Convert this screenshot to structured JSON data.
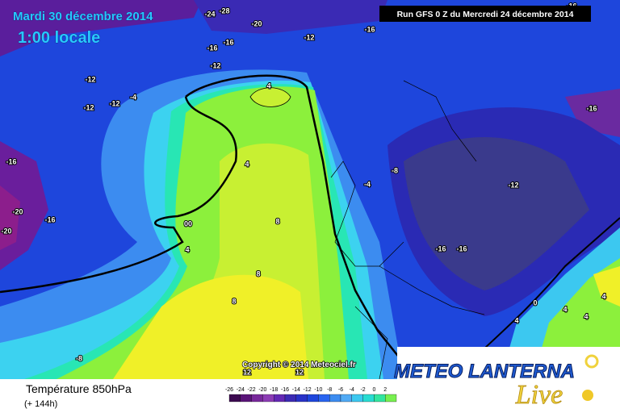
{
  "header": {
    "date": "Mardi 30 décembre 2014",
    "time": "1:00 locale",
    "run": "Run GFS 0 Z du Mercredi 24 décembre 2014"
  },
  "footer": {
    "title": "Température 850hPa",
    "lead": "(+ 144h)",
    "copyright": "Copyright © 2014 Meteociel.fr",
    "brand": "METEO LANTERNA",
    "brand_script": "Live"
  },
  "scale": {
    "labels": [
      "-26",
      "-24",
      "-22",
      "-20",
      "-18",
      "-16",
      "-14",
      "-12",
      "-10",
      "-8",
      "-6",
      "-4",
      "-2",
      "0",
      "2"
    ],
    "colors": [
      "#3c0a50",
      "#5a1478",
      "#78289b",
      "#8c3cb4",
      "#6428b4",
      "#3c2ab4",
      "#2832c8",
      "#1e46dc",
      "#2864f0",
      "#3c8cf0",
      "#50aaf5",
      "#3cc8f0",
      "#28dcd2",
      "#32e6a0",
      "#78f050"
    ]
  },
  "contours": [
    "-24",
    "-28",
    "-20",
    "-16",
    "-12",
    "-16",
    "-16",
    "-12",
    "-12",
    "-12",
    "-12",
    "-4",
    "4",
    "-16",
    "-20",
    "-20",
    "-16",
    "00",
    "4",
    "4",
    "8",
    "8",
    "8",
    "-8",
    "-4",
    "-8",
    "-12",
    "-16",
    "-16",
    "-16",
    "12",
    "12",
    "0",
    "4",
    "4",
    "4",
    "4",
    "-16"
  ]
}
